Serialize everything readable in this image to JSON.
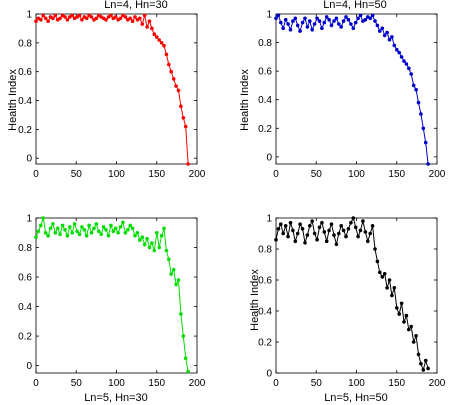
{
  "chart_data": [
    {
      "type": "line",
      "title": "Ln=4, Hn=30",
      "xlabel": "",
      "ylabel": "Health Index",
      "xlim": [
        0,
        200
      ],
      "ylim": [
        -0.04,
        1.0
      ],
      "xticks": [
        "0",
        "50",
        "100",
        "150",
        "200"
      ],
      "yticks": [
        "0",
        "0.2",
        "0.4",
        "0.6",
        "0.8",
        "1"
      ],
      "color": "#ff0000",
      "x": [
        0,
        3,
        6,
        9,
        12,
        15,
        18,
        21,
        24,
        27,
        30,
        33,
        36,
        39,
        42,
        45,
        48,
        51,
        54,
        57,
        60,
        63,
        66,
        69,
        72,
        75,
        78,
        81,
        84,
        87,
        90,
        93,
        96,
        99,
        102,
        105,
        108,
        111,
        114,
        117,
        120,
        123,
        126,
        129,
        132,
        135,
        138,
        141,
        144,
        147,
        150,
        153,
        156,
        159,
        162,
        165,
        168,
        171,
        174,
        177,
        180,
        183,
        186,
        189
      ],
      "y": [
        0.95,
        0.97,
        0.96,
        0.99,
        0.97,
        0.95,
        0.98,
        0.97,
        0.99,
        0.96,
        0.97,
        0.99,
        0.98,
        0.96,
        0.98,
        0.99,
        0.97,
        0.98,
        0.99,
        0.96,
        0.98,
        0.97,
        0.99,
        0.98,
        0.96,
        0.97,
        0.99,
        0.98,
        0.97,
        0.96,
        0.98,
        0.99,
        0.97,
        0.98,
        0.96,
        0.97,
        0.99,
        0.98,
        0.96,
        0.97,
        0.95,
        0.98,
        0.96,
        0.97,
        0.93,
        0.99,
        0.91,
        0.95,
        0.9,
        0.86,
        0.84,
        0.82,
        0.8,
        0.78,
        0.72,
        0.65,
        0.6,
        0.55,
        0.5,
        0.47,
        0.36,
        0.28,
        0.22,
        -0.04
      ]
    },
    {
      "type": "line",
      "title": "Ln=4, Hn=50",
      "xlabel": "",
      "ylabel": "Health Index",
      "xlim": [
        0,
        200
      ],
      "ylim": [
        -0.05,
        1.0
      ],
      "xticks": [
        "0",
        "50",
        "100",
        "150",
        "200"
      ],
      "yticks": [
        "0",
        "0.2",
        "0.4",
        "0.6",
        "0.8",
        "1"
      ],
      "color": "#0000cc",
      "x": [
        0,
        3,
        6,
        9,
        12,
        15,
        18,
        21,
        24,
        27,
        30,
        33,
        36,
        39,
        42,
        45,
        48,
        51,
        54,
        57,
        60,
        63,
        66,
        69,
        72,
        75,
        78,
        81,
        84,
        87,
        90,
        93,
        96,
        99,
        102,
        105,
        108,
        111,
        114,
        117,
        120,
        123,
        126,
        129,
        132,
        135,
        138,
        141,
        144,
        147,
        150,
        153,
        156,
        159,
        162,
        165,
        168,
        171,
        174,
        177,
        180,
        183,
        186,
        189
      ],
      "y": [
        0.97,
        0.99,
        0.94,
        0.9,
        0.96,
        0.93,
        0.89,
        0.95,
        0.97,
        0.92,
        0.88,
        0.94,
        0.97,
        0.91,
        0.95,
        0.89,
        0.93,
        0.97,
        0.95,
        0.9,
        0.94,
        0.98,
        0.96,
        0.92,
        0.95,
        0.97,
        0.93,
        0.91,
        0.95,
        0.98,
        0.96,
        0.93,
        0.9,
        0.94,
        0.97,
        0.99,
        0.95,
        0.96,
        0.98,
        0.97,
        0.99,
        0.95,
        0.92,
        0.88,
        0.9,
        0.85,
        0.87,
        0.82,
        0.84,
        0.78,
        0.75,
        0.73,
        0.7,
        0.67,
        0.65,
        0.62,
        0.58,
        0.5,
        0.47,
        0.38,
        0.3,
        0.2,
        0.1,
        -0.05
      ]
    },
    {
      "type": "line",
      "title": "",
      "xlabel": "Ln=5, Hn=30",
      "ylabel": "",
      "xlim": [
        0,
        200
      ],
      "ylim": [
        -0.05,
        1.0
      ],
      "xticks": [
        "0",
        "50",
        "100",
        "150",
        "200"
      ],
      "yticks": [
        "0",
        "0.2",
        "0.4",
        "0.6",
        "0.8",
        "1"
      ],
      "color": "#00dd00",
      "x": [
        0,
        3,
        6,
        9,
        12,
        15,
        18,
        21,
        24,
        27,
        30,
        33,
        36,
        39,
        42,
        45,
        48,
        51,
        54,
        57,
        60,
        63,
        66,
        69,
        72,
        75,
        78,
        81,
        84,
        87,
        90,
        93,
        96,
        99,
        102,
        105,
        108,
        111,
        114,
        117,
        120,
        123,
        126,
        129,
        132,
        135,
        138,
        141,
        144,
        147,
        150,
        153,
        156,
        159,
        162,
        165,
        168,
        171,
        174,
        177,
        180,
        183,
        186,
        189
      ],
      "y": [
        0.87,
        0.91,
        0.95,
        1.0,
        0.9,
        0.88,
        0.93,
        0.96,
        0.9,
        0.93,
        0.89,
        0.95,
        0.92,
        0.88,
        0.94,
        0.9,
        0.96,
        0.91,
        0.89,
        0.94,
        0.92,
        0.88,
        0.95,
        0.9,
        0.93,
        0.96,
        0.91,
        0.89,
        0.94,
        0.92,
        0.88,
        0.95,
        0.91,
        0.93,
        0.9,
        0.94,
        0.97,
        0.9,
        0.92,
        0.95,
        0.93,
        0.88,
        0.9,
        0.85,
        0.87,
        0.82,
        0.86,
        0.8,
        0.83,
        0.78,
        0.9,
        0.8,
        0.88,
        0.93,
        0.78,
        0.72,
        0.62,
        0.65,
        0.55,
        0.58,
        0.35,
        0.2,
        0.05,
        -0.04
      ]
    },
    {
      "type": "line",
      "title": "",
      "xlabel": "Ln=5, Hn=50",
      "ylabel": "Health Index",
      "xlim": [
        0,
        200
      ],
      "ylim": [
        0,
        1.0
      ],
      "xticks": [
        "0",
        "50",
        "100",
        "150",
        "200"
      ],
      "yticks": [
        "0",
        "0.2",
        "0.4",
        "0.6",
        "0.8",
        "1"
      ],
      "color": "#000000",
      "x": [
        0,
        3,
        6,
        9,
        12,
        15,
        18,
        21,
        24,
        27,
        30,
        33,
        36,
        39,
        42,
        45,
        48,
        51,
        54,
        57,
        60,
        63,
        66,
        69,
        72,
        75,
        78,
        81,
        84,
        87,
        90,
        93,
        96,
        99,
        102,
        105,
        108,
        111,
        114,
        117,
        120,
        123,
        126,
        129,
        132,
        135,
        138,
        141,
        144,
        147,
        150,
        153,
        156,
        159,
        162,
        165,
        168,
        171,
        174,
        177,
        180,
        183,
        186,
        189
      ],
      "y": [
        0.86,
        0.93,
        0.96,
        0.9,
        0.95,
        0.88,
        0.97,
        0.92,
        0.85,
        0.9,
        0.96,
        0.93,
        0.84,
        0.89,
        0.95,
        0.98,
        0.9,
        0.86,
        0.94,
        0.97,
        0.91,
        0.85,
        0.92,
        0.96,
        0.89,
        0.83,
        0.9,
        0.95,
        0.92,
        0.88,
        0.93,
        0.97,
        1.0,
        0.94,
        0.88,
        0.92,
        0.98,
        0.91,
        0.85,
        0.9,
        0.95,
        0.8,
        0.72,
        0.65,
        0.62,
        0.64,
        0.55,
        0.6,
        0.5,
        0.55,
        0.42,
        0.38,
        0.45,
        0.33,
        0.37,
        0.28,
        0.3,
        0.2,
        0.24,
        0.12,
        0.06,
        0.02,
        0.08,
        0.03
      ]
    }
  ]
}
